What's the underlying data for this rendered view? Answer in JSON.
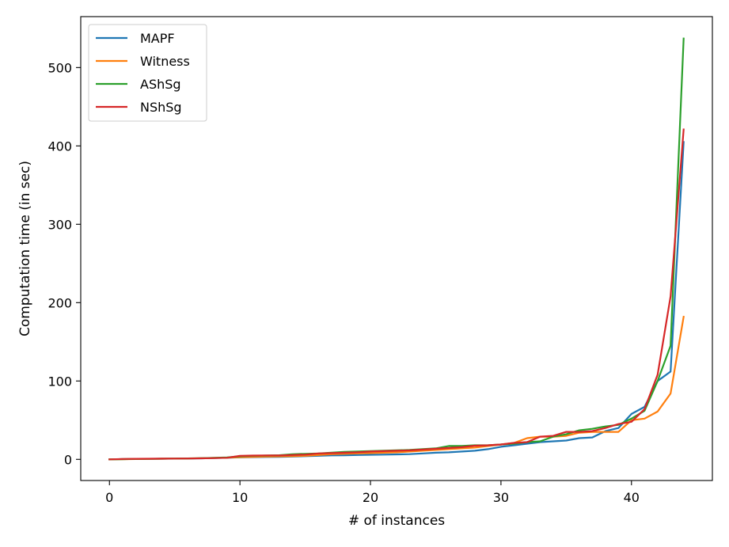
{
  "chart_data": {
    "type": "line",
    "xlabel": "# of instances",
    "ylabel": "Computation time (in sec)",
    "xlim": [
      -2.2,
      46.2
    ],
    "ylim": [
      -27,
      565
    ],
    "xticks": [
      0,
      10,
      20,
      30,
      40
    ],
    "yticks": [
      0,
      100,
      200,
      300,
      400,
      500
    ],
    "legend_position": "top-left",
    "grid": false,
    "x": [
      0,
      1,
      2,
      3,
      4,
      5,
      6,
      7,
      8,
      9,
      10,
      11,
      12,
      13,
      14,
      15,
      16,
      17,
      18,
      19,
      20,
      21,
      22,
      23,
      24,
      25,
      26,
      27,
      28,
      29,
      30,
      31,
      32,
      33,
      34,
      35,
      36,
      37,
      38,
      39,
      40,
      41,
      42,
      43,
      44
    ],
    "series": [
      {
        "name": "MAPF",
        "color": "#1f77b4",
        "values": [
          0,
          0.3,
          0.5,
          0.7,
          0.8,
          0.9,
          1,
          1.3,
          1.6,
          2,
          2.5,
          2.8,
          3,
          3.2,
          3.5,
          4,
          4.5,
          5,
          5.2,
          5.5,
          5.8,
          6,
          6.3,
          6.6,
          7.5,
          8.5,
          9,
          10,
          11,
          13,
          16,
          18,
          20,
          22,
          23,
          24,
          27,
          28,
          36,
          40,
          58,
          67,
          100,
          112,
          405
        ]
      },
      {
        "name": "Witness",
        "color": "#ff7f0e",
        "values": [
          0,
          0.2,
          0.4,
          0.6,
          0.8,
          1,
          1.2,
          1.5,
          1.8,
          2.2,
          2.8,
          3.2,
          3.5,
          3.8,
          4,
          4.5,
          5.5,
          6.5,
          7,
          7.5,
          8,
          8.5,
          9,
          10,
          11,
          12,
          13,
          14,
          15,
          17,
          19,
          21,
          27,
          29,
          29,
          30,
          34,
          35,
          35,
          35,
          50,
          52,
          61,
          84,
          182
        ]
      },
      {
        "name": "AShSg",
        "color": "#2ca02c",
        "values": [
          0,
          0.3,
          0.5,
          0.6,
          0.8,
          1,
          1.2,
          1.5,
          2,
          2.5,
          4,
          4.5,
          4.8,
          5.2,
          6.5,
          7,
          7.5,
          8.5,
          9.5,
          10,
          10.5,
          11,
          11.5,
          12,
          13,
          14,
          17,
          17,
          18,
          18,
          19,
          20,
          22,
          23,
          29,
          32,
          37,
          39,
          42,
          44,
          52,
          62,
          100,
          145,
          537
        ]
      },
      {
        "name": "NShSg",
        "color": "#d62728",
        "values": [
          0,
          0.5,
          0.7,
          0.8,
          0.9,
          1,
          1.1,
          1.3,
          1.6,
          2,
          4.5,
          4.8,
          5,
          5,
          5.5,
          6,
          7.5,
          8,
          8.5,
          9,
          10,
          10.5,
          11,
          11.5,
          12.5,
          13.5,
          14.5,
          15.5,
          17.5,
          18,
          19,
          21,
          22,
          29,
          30,
          35,
          35,
          36,
          40,
          45,
          48,
          64,
          108,
          208,
          421
        ]
      }
    ]
  }
}
